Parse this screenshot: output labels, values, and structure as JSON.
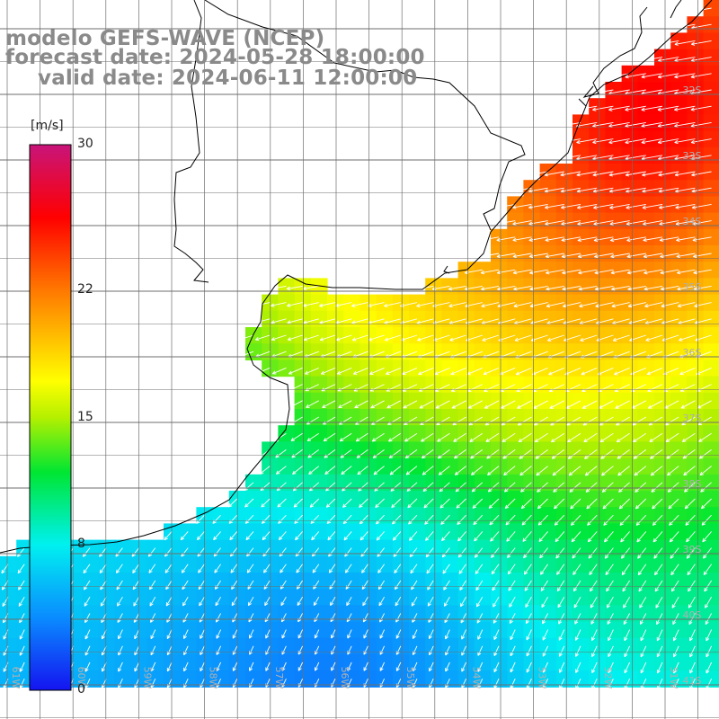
{
  "title": {
    "line1": "modelo GEFS-WAVE (NCEP)",
    "line2": "forecast date: 2024-05-28 18:00:00",
    "line3": "valid date: 2024-06-11 12:00:00"
  },
  "colorbar": {
    "units": "[m/s]",
    "ticks": [
      {
        "value": 30,
        "label": "30"
      },
      {
        "value": 22,
        "label": "22"
      },
      {
        "value": 15,
        "label": "15"
      },
      {
        "value": 8,
        "label": "8"
      },
      {
        "value": 0,
        "label": "0"
      }
    ],
    "stops": [
      {
        "value": 0,
        "color": "#1414f0"
      },
      {
        "value": 4,
        "color": "#0a8cff"
      },
      {
        "value": 8,
        "color": "#00f0f0"
      },
      {
        "value": 12,
        "color": "#00e632"
      },
      {
        "value": 15,
        "color": "#b4f000"
      },
      {
        "value": 17,
        "color": "#ffff00"
      },
      {
        "value": 22,
        "color": "#ff7800"
      },
      {
        "value": 26,
        "color": "#ff0000"
      },
      {
        "value": 30,
        "color": "#c8147a"
      }
    ]
  },
  "grid": {
    "lat_labels": [
      "32S",
      "33S",
      "34S",
      "35S",
      "36S",
      "37S",
      "38S",
      "39S",
      "40S",
      "41S"
    ],
    "lon_labels": [
      "61W",
      "60W",
      "59W",
      "58W",
      "57W",
      "56W",
      "55W",
      "54W",
      "53W",
      "52W",
      "51W"
    ]
  },
  "colors": {
    "land": "#ffffff",
    "coastline": "#000000",
    "gridline": "#6e6e6e",
    "arrows": "#ffffff",
    "title": "#8a8a8a"
  }
}
